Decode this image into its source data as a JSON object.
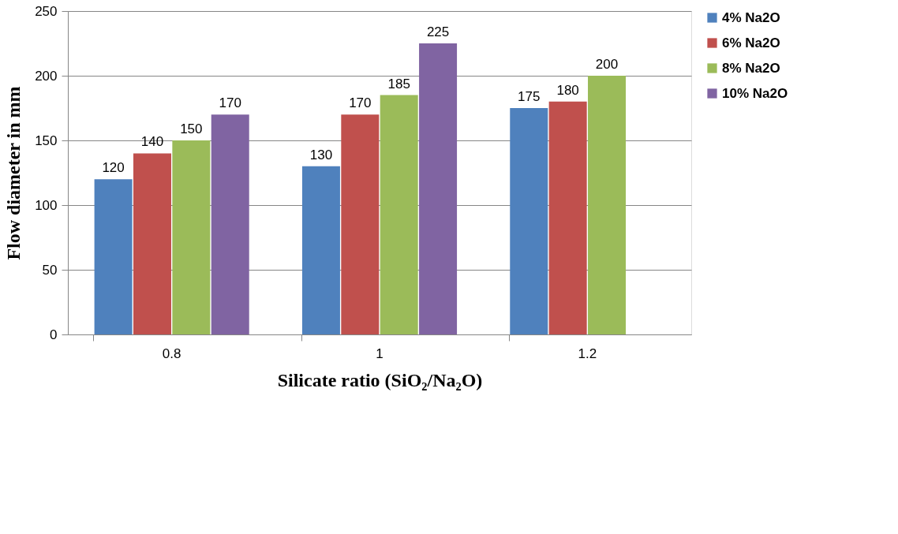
{
  "chart_data": {
    "type": "bar",
    "xlabel": "Silicate ratio (SiO₂/Na₂O)",
    "ylabel": "Flow diameter in mm",
    "categories": [
      "0.8",
      "1",
      "1.2"
    ],
    "series": [
      {
        "name": "4% Na2O",
        "color": "#4f81bd",
        "values": [
          120,
          130,
          175
        ]
      },
      {
        "name": "6% Na2O",
        "color": "#c0504d",
        "values": [
          140,
          170,
          180
        ]
      },
      {
        "name": "8% Na2O",
        "color": "#9bbb59",
        "values": [
          150,
          185,
          200
        ]
      },
      {
        "name": "10% Na2O",
        "color": "#8064a2",
        "values": [
          170,
          225,
          null
        ]
      }
    ],
    "ylim": [
      0,
      250
    ],
    "yticks": [
      0,
      50,
      100,
      150,
      200,
      250
    ],
    "grid": "y",
    "legend": "right",
    "data_labels": true
  }
}
